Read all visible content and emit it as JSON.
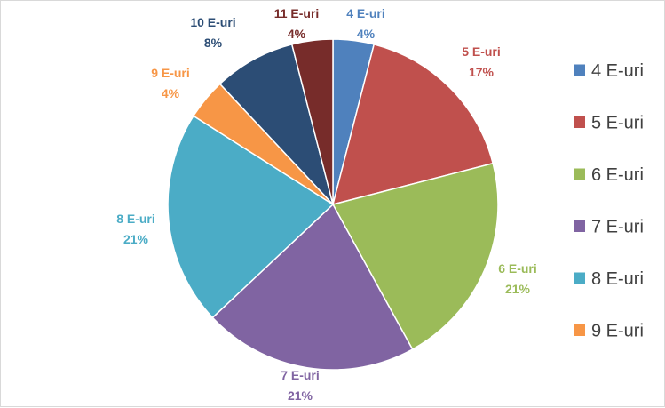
{
  "chart_data": {
    "type": "pie",
    "categories": [
      "4 E-uri",
      "5 E-uri",
      "6 E-uri",
      "7 E-uri",
      "8 E-uri",
      "9 E-uri",
      "10 E-uri",
      "11 E-uri"
    ],
    "values": [
      4,
      17,
      21,
      21,
      21,
      4,
      8,
      4
    ],
    "value_labels": [
      "4%",
      "17%",
      "21%",
      "21%",
      "21%",
      "4%",
      "8%",
      "4%"
    ],
    "colors": [
      "#4f81bd",
      "#c0504d",
      "#9bbb59",
      "#8064a2",
      "#4bacc6",
      "#f79646",
      "#2c4d75",
      "#772c2a"
    ],
    "legend": {
      "placement": "right",
      "entries": [
        "4 E-uri",
        "5 E-uri",
        "6 E-uri",
        "7 E-uri",
        "8 E-uri",
        "9 E-uri"
      ]
    },
    "start_angle_deg": 0,
    "direction": "clockwise"
  }
}
